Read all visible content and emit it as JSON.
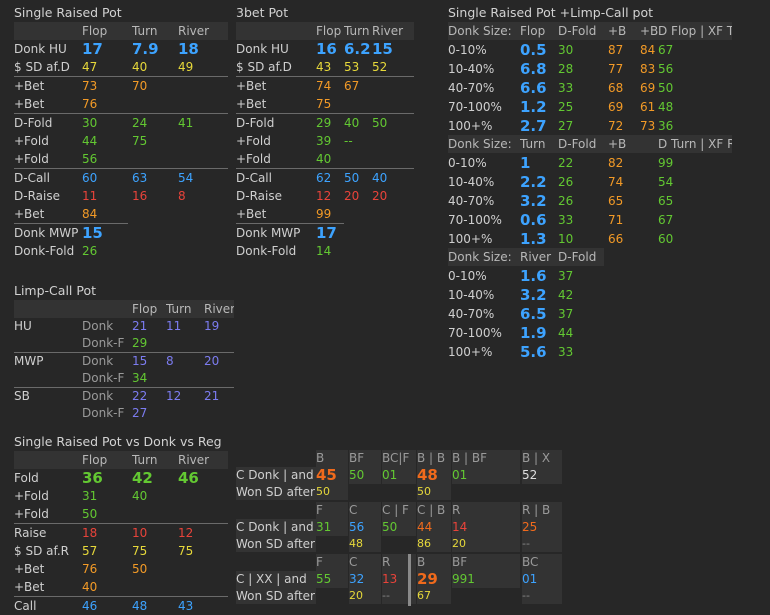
{
  "srp": {
    "title": "Single Raised Pot",
    "headers": [
      "",
      "Flop",
      "Turn",
      "River"
    ],
    "rows": [
      {
        "label": "Donk HU",
        "v": [
          [
            "17",
            "blue big"
          ],
          [
            "7.9",
            "blue big"
          ],
          [
            "18",
            "blue big"
          ]
        ],
        "sep": false
      },
      {
        "label": "$ SD af.D",
        "v": [
          [
            "47",
            "yellow"
          ],
          [
            "40",
            "yellow"
          ],
          [
            "49",
            "yellow"
          ]
        ],
        "sep": false
      },
      {
        "label": "+Bet",
        "v": [
          [
            "73",
            "orange"
          ],
          [
            "70",
            "orange"
          ],
          [
            "",
            ""
          ]
        ],
        "sep": true
      },
      {
        "label": "+Bet",
        "v": [
          [
            "76",
            "orange"
          ],
          [
            "",
            ""
          ],
          [
            "",
            ""
          ]
        ],
        "sep": false
      },
      {
        "label": "D-Fold",
        "v": [
          [
            "30",
            "green"
          ],
          [
            "24",
            "green"
          ],
          [
            "41",
            "green"
          ]
        ],
        "sep": true
      },
      {
        "label": "+Fold",
        "v": [
          [
            "44",
            "green"
          ],
          [
            "75",
            "green"
          ],
          [
            "",
            ""
          ]
        ],
        "sep": false
      },
      {
        "label": "+Fold",
        "v": [
          [
            "56",
            "green"
          ],
          [
            "",
            ""
          ],
          [
            "",
            ""
          ]
        ],
        "sep": false
      },
      {
        "label": "D-Call",
        "v": [
          [
            "60",
            "blue"
          ],
          [
            "63",
            "blue"
          ],
          [
            "54",
            "blue"
          ]
        ],
        "sep": true
      },
      {
        "label": "D-Raise",
        "v": [
          [
            "11",
            "red"
          ],
          [
            "16",
            "red"
          ],
          [
            "8",
            "red"
          ]
        ],
        "sep": false
      },
      {
        "label": "+Bet",
        "v": [
          [
            "84",
            "orange"
          ],
          [
            "",
            ""
          ],
          [
            "",
            ""
          ]
        ],
        "sep": false
      },
      {
        "label": "Donk MWP",
        "v": [
          [
            "15",
            "blue big"
          ]
        ],
        "sep": true,
        "short": true
      },
      {
        "label": "Donk-Fold",
        "v": [
          [
            "26",
            "green"
          ]
        ],
        "sep": false,
        "short": true
      }
    ]
  },
  "threebet": {
    "title": "3bet Pot",
    "headers": [
      "",
      "Flop",
      "Turn",
      "River"
    ],
    "rows": [
      {
        "label": "Donk HU",
        "v": [
          [
            "16",
            "blue big"
          ],
          [
            "6.2",
            "blue big"
          ],
          [
            "15",
            "blue big"
          ]
        ],
        "sep": false
      },
      {
        "label": "$ SD af.D",
        "v": [
          [
            "43",
            "yellow"
          ],
          [
            "53",
            "yellow"
          ],
          [
            "52",
            "yellow"
          ]
        ],
        "sep": false
      },
      {
        "label": "+Bet",
        "v": [
          [
            "74",
            "orange"
          ],
          [
            "67",
            "orange"
          ],
          [
            "",
            ""
          ]
        ],
        "sep": true
      },
      {
        "label": "+Bet",
        "v": [
          [
            "75",
            "orange"
          ],
          [
            "",
            ""
          ],
          [
            "",
            ""
          ]
        ],
        "sep": false
      },
      {
        "label": "D-Fold",
        "v": [
          [
            "29",
            "green"
          ],
          [
            "40",
            "green"
          ],
          [
            "50",
            "green"
          ]
        ],
        "sep": true
      },
      {
        "label": "+Fold",
        "v": [
          [
            "39",
            "green"
          ],
          [
            "--",
            "green"
          ],
          [
            "",
            ""
          ]
        ],
        "sep": false
      },
      {
        "label": "+Fold",
        "v": [
          [
            "40",
            "green"
          ],
          [
            "",
            ""
          ],
          [
            "",
            ""
          ]
        ],
        "sep": false
      },
      {
        "label": "D-Call",
        "v": [
          [
            "62",
            "blue"
          ],
          [
            "50",
            "blue"
          ],
          [
            "40",
            "blue"
          ]
        ],
        "sep": true
      },
      {
        "label": "D-Raise",
        "v": [
          [
            "12",
            "red"
          ],
          [
            "20",
            "red"
          ],
          [
            "20",
            "red"
          ]
        ],
        "sep": false
      },
      {
        "label": "+Bet",
        "v": [
          [
            "99",
            "orange"
          ],
          [
            "",
            ""
          ],
          [
            "",
            ""
          ]
        ],
        "sep": false
      },
      {
        "label": "Donk MWP",
        "v": [
          [
            "17",
            "blue big"
          ]
        ],
        "sep": true,
        "short": true
      },
      {
        "label": "Donk-Fold",
        "v": [
          [
            "14",
            "green"
          ]
        ],
        "sep": false,
        "short": true
      }
    ]
  },
  "limp_donk": {
    "title": "Single Raised Pot +Limp-Call pot",
    "sections": [
      {
        "headers": [
          "Donk Size:",
          "Flop",
          "D-Fold",
          "+B",
          "+B",
          "D Flop | XF T"
        ],
        "rows": [
          [
            "0-10%",
            [
              "0.5",
              "blue big"
            ],
            [
              "30",
              "green"
            ],
            [
              "87",
              "orange"
            ],
            [
              "84",
              "orange"
            ],
            [
              "67",
              "green"
            ]
          ],
          [
            "10-40%",
            [
              "6.8",
              "blue big"
            ],
            [
              "28",
              "green"
            ],
            [
              "77",
              "orange"
            ],
            [
              "83",
              "orange"
            ],
            [
              "56",
              "green"
            ]
          ],
          [
            "40-70%",
            [
              "6.6",
              "blue big"
            ],
            [
              "33",
              "green"
            ],
            [
              "68",
              "orange"
            ],
            [
              "69",
              "orange"
            ],
            [
              "50",
              "green"
            ]
          ],
          [
            "70-100%",
            [
              "1.2",
              "blue big"
            ],
            [
              "25",
              "green"
            ],
            [
              "69",
              "orange"
            ],
            [
              "61",
              "orange"
            ],
            [
              "48",
              "green"
            ]
          ],
          [
            "100+%",
            [
              "2.7",
              "blue big"
            ],
            [
              "27",
              "green"
            ],
            [
              "72",
              "orange"
            ],
            [
              "73",
              "orange"
            ],
            [
              "36",
              "green"
            ]
          ]
        ]
      },
      {
        "headers": [
          "Donk Size:",
          "Turn",
          "D-Fold",
          "+B",
          "",
          "D Turn | XF R"
        ],
        "rows": [
          [
            "0-10%",
            [
              "1",
              "blue big"
            ],
            [
              "22",
              "green"
            ],
            [
              "82",
              "orange"
            ],
            [
              "",
              ""
            ],
            [
              "99",
              "green"
            ]
          ],
          [
            "10-40%",
            [
              "2.2",
              "blue big"
            ],
            [
              "26",
              "green"
            ],
            [
              "74",
              "orange"
            ],
            [
              "",
              ""
            ],
            [
              "54",
              "green"
            ]
          ],
          [
            "40-70%",
            [
              "3.2",
              "blue big"
            ],
            [
              "26",
              "green"
            ],
            [
              "65",
              "orange"
            ],
            [
              "",
              ""
            ],
            [
              "65",
              "green"
            ]
          ],
          [
            "70-100%",
            [
              "0.6",
              "blue big"
            ],
            [
              "33",
              "green"
            ],
            [
              "71",
              "orange"
            ],
            [
              "",
              ""
            ],
            [
              "67",
              "green"
            ]
          ],
          [
            "100+%",
            [
              "1.3",
              "blue big"
            ],
            [
              "10",
              "green"
            ],
            [
              "66",
              "orange"
            ],
            [
              "",
              ""
            ],
            [
              "60",
              "green"
            ]
          ]
        ]
      },
      {
        "headers": [
          "Donk Size:",
          "River",
          "D-Fold"
        ],
        "rows": [
          [
            "0-10%",
            [
              "1.6",
              "blue big"
            ],
            [
              "37",
              "green"
            ]
          ],
          [
            "10-40%",
            [
              "3.2",
              "blue big"
            ],
            [
              "42",
              "green"
            ]
          ],
          [
            "40-70%",
            [
              "6.5",
              "blue big"
            ],
            [
              "37",
              "green"
            ]
          ],
          [
            "70-100%",
            [
              "1.9",
              "blue big"
            ],
            [
              "44",
              "green"
            ]
          ],
          [
            "100+%",
            [
              "5.6",
              "blue big"
            ],
            [
              "33",
              "green"
            ]
          ]
        ]
      }
    ]
  },
  "limpcall": {
    "title": "Limp-Call Pot",
    "headers": [
      "",
      "",
      "Flop",
      "Turn",
      "River"
    ],
    "groups": [
      {
        "pos": "HU",
        "rows": [
          [
            "Donk",
            [
              "21",
              "purple"
            ],
            [
              "11",
              "purple"
            ],
            [
              "19",
              "purple"
            ]
          ],
          [
            "Donk-F",
            [
              "29",
              "green"
            ],
            [
              "",
              ""
            ],
            [
              "",
              ""
            ]
          ]
        ]
      },
      {
        "pos": "MWP",
        "rows": [
          [
            "Donk",
            [
              "15",
              "purple"
            ],
            [
              "8",
              "purple"
            ],
            [
              "20",
              "purple"
            ]
          ],
          [
            "Donk-F",
            [
              "34",
              "green"
            ],
            [
              "",
              ""
            ],
            [
              "",
              ""
            ]
          ]
        ]
      },
      {
        "pos": "SB",
        "rows": [
          [
            "Donk",
            [
              "22",
              "purple"
            ],
            [
              "12",
              "purple"
            ],
            [
              "21",
              "purple"
            ]
          ],
          [
            "Donk-F",
            [
              "27",
              "purple"
            ],
            [
              "",
              ""
            ],
            [
              "",
              ""
            ]
          ]
        ]
      }
    ]
  },
  "vsreg": {
    "title": "Single Raised Pot vs Donk vs Reg",
    "headers": [
      "",
      "Flop",
      "Turn",
      "River"
    ],
    "rows": [
      {
        "label": "Fold",
        "v": [
          [
            "36",
            "green big"
          ],
          [
            "42",
            "green big"
          ],
          [
            "46",
            "green big"
          ]
        ],
        "sep": false
      },
      {
        "label": "+Fold",
        "v": [
          [
            "31",
            "green"
          ],
          [
            "40",
            "green"
          ],
          [
            "",
            ""
          ]
        ],
        "sep": false
      },
      {
        "label": "+Fold",
        "v": [
          [
            "50",
            "green"
          ],
          [
            "",
            ""
          ],
          [
            "",
            ""
          ]
        ],
        "sep": false
      },
      {
        "label": "Raise",
        "v": [
          [
            "18",
            "red"
          ],
          [
            "10",
            "red"
          ],
          [
            "12",
            "red"
          ]
        ],
        "sep": true
      },
      {
        "label": "$ SD af.R",
        "v": [
          [
            "57",
            "yellow"
          ],
          [
            "75",
            "yellow"
          ],
          [
            "75",
            "yellow"
          ]
        ],
        "sep": false
      },
      {
        "label": "+Bet",
        "v": [
          [
            "76",
            "orange"
          ],
          [
            "50",
            "orange"
          ],
          [
            "",
            ""
          ]
        ],
        "sep": false
      },
      {
        "label": "+Bet",
        "v": [
          [
            "40",
            "orange"
          ],
          [
            "",
            ""
          ],
          [
            "",
            ""
          ]
        ],
        "sep": false
      },
      {
        "label": "Call",
        "v": [
          [
            "46",
            "blue"
          ],
          [
            "48",
            "blue"
          ],
          [
            "43",
            "blue"
          ]
        ],
        "sep": true
      }
    ]
  },
  "cdonk": {
    "blocks": [
      {
        "head": [
          "B",
          "BF",
          "BC|F",
          "B | B",
          "B | BF",
          "",
          "B | X"
        ],
        "label1": "C Donk | and",
        "label2": "Won SD after:",
        "vals": [
          [
            "45",
            "deep big"
          ],
          [
            "50",
            "green"
          ],
          [
            "01",
            "green"
          ],
          [
            "48",
            "deep big"
          ],
          [
            "01",
            "green"
          ],
          [
            "",
            ""
          ],
          [
            "52",
            "white"
          ]
        ],
        "sd": [
          [
            "50",
            "yellow"
          ],
          [
            "",
            ""
          ],
          [
            "",
            ""
          ],
          [
            "50",
            "yellow"
          ],
          [
            "",
            ""
          ],
          [
            "",
            ""
          ],
          [
            "",
            ""
          ]
        ]
      },
      {
        "head": [
          "F",
          "C",
          "C | F",
          "C | B",
          "R",
          "",
          "R | B"
        ],
        "label1": "C Donk | and",
        "label2": "Won SD after:",
        "vals": [
          [
            "31",
            "green"
          ],
          [
            "56",
            "blue"
          ],
          [
            "50",
            "green"
          ],
          [
            "44",
            "deep"
          ],
          [
            "14",
            "red"
          ],
          [
            "",
            ""
          ],
          [
            "25",
            "deep"
          ]
        ],
        "sd": [
          [
            "",
            ""
          ],
          [
            "48",
            "yellow"
          ],
          [
            "",
            ""
          ],
          [
            "86",
            "yellow"
          ],
          [
            "20",
            "yellow"
          ],
          [
            "",
            ""
          ],
          [
            "--",
            "dgray"
          ]
        ]
      },
      {
        "head": [
          "F",
          "C",
          "R",
          "B",
          "BF",
          "",
          "BC"
        ],
        "label1": "C | XX | and",
        "label2": "Won SD after:",
        "vals": [
          [
            "55",
            "green"
          ],
          [
            "32",
            "blue"
          ],
          [
            "13",
            "red"
          ],
          [
            "29",
            "deep big"
          ],
          [
            "991",
            "green"
          ],
          [
            "",
            ""
          ],
          [
            "01",
            "blue"
          ]
        ],
        "sd": [
          [
            "",
            ""
          ],
          [
            "20",
            "yellow"
          ],
          [
            "--",
            "dgray"
          ],
          [
            "67",
            "yellow"
          ],
          [
            "",
            ""
          ],
          [
            "",
            ""
          ],
          [
            "--",
            "dgray"
          ]
        ]
      }
    ]
  }
}
